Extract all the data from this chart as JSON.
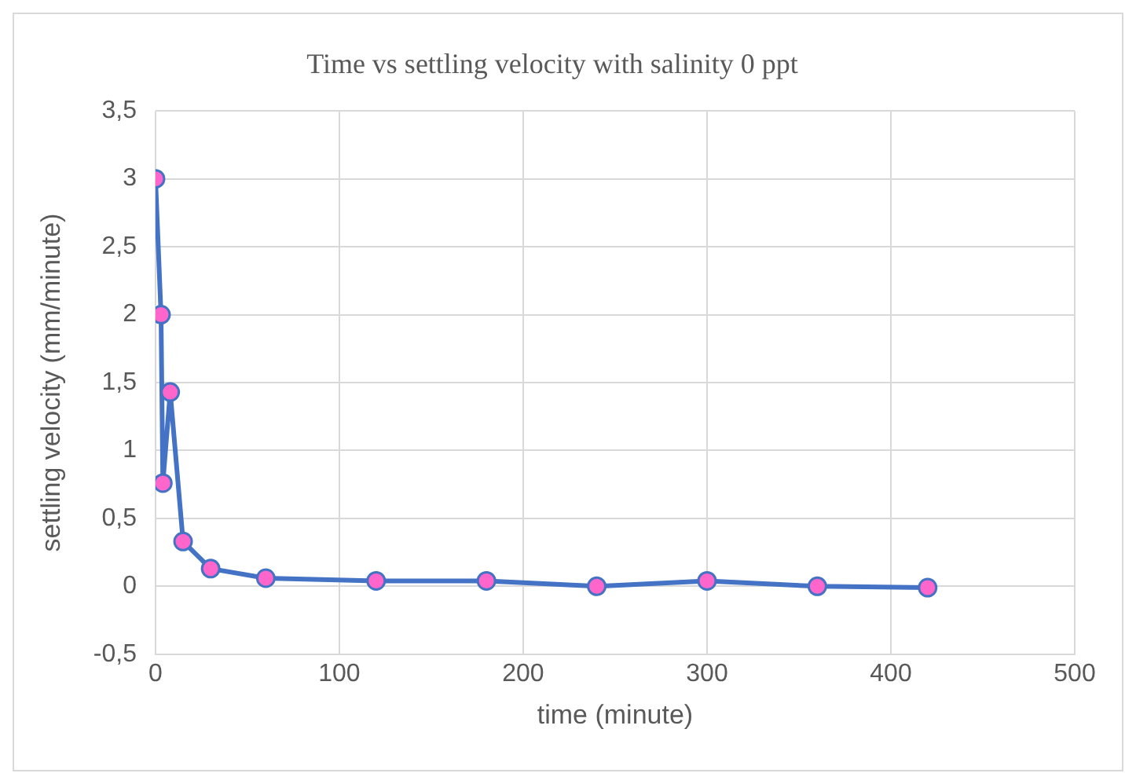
{
  "chart_data": {
    "type": "line",
    "title": "Time vs settling velocity with salinity 0 ppt",
    "xlabel": "time (minute)",
    "ylabel": "settling velocity (mm/minute)",
    "series": [
      {
        "color": "#4472c4",
        "x": [
          0,
          3,
          4,
          8,
          15,
          30,
          60,
          120,
          180,
          240,
          300,
          360,
          420
        ],
        "values": [
          3.0,
          2.0,
          0.76,
          1.43,
          0.33,
          0.13,
          0.06,
          0.04,
          0.04,
          0,
          0.04,
          0,
          -0.01
        ]
      }
    ],
    "xlim": [
      0,
      500
    ],
    "xticks": [
      0,
      100,
      200,
      300,
      400,
      500
    ],
    "ylim": [
      -0.5,
      3.5
    ],
    "yticks": [
      {
        "value": -0.5,
        "label": "-0,5"
      },
      0,
      {
        "value": 0.5,
        "label": "0,5"
      },
      1,
      {
        "value": 1.5,
        "label": "1,5"
      },
      2,
      {
        "value": 2.5,
        "label": "2,5"
      },
      3,
      {
        "value": 3.5,
        "label": "3,5"
      }
    ],
    "grid": true,
    "legend": false,
    "marker": "circle",
    "line_style": "solid"
  }
}
